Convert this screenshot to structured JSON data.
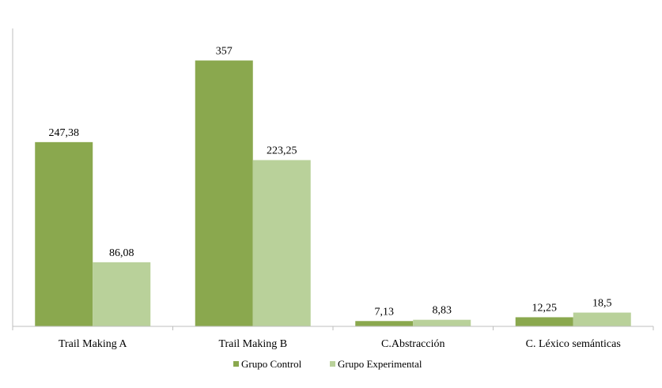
{
  "chart_data": {
    "type": "bar",
    "title": "",
    "xlabel": "",
    "ylabel": "",
    "ylim": [
      0,
      400
    ],
    "grid": false,
    "legend_position": "bottom",
    "categories": [
      "Trail Making A",
      "Trail Making B",
      "C.Abstracción",
      "C. Léxico semánticas"
    ],
    "series": [
      {
        "name": "Grupo Control",
        "color": "#8aa84e",
        "values": [
          247.38,
          357,
          7.13,
          12.25
        ],
        "labels": [
          "247,38",
          "357",
          "7,13",
          "12,25"
        ]
      },
      {
        "name": "Grupo Experimental",
        "color": "#b9d19a",
        "values": [
          86.08,
          223.25,
          8.83,
          18.5
        ],
        "labels": [
          "86,08",
          "223,25",
          "8,83",
          "18,5"
        ]
      }
    ]
  }
}
